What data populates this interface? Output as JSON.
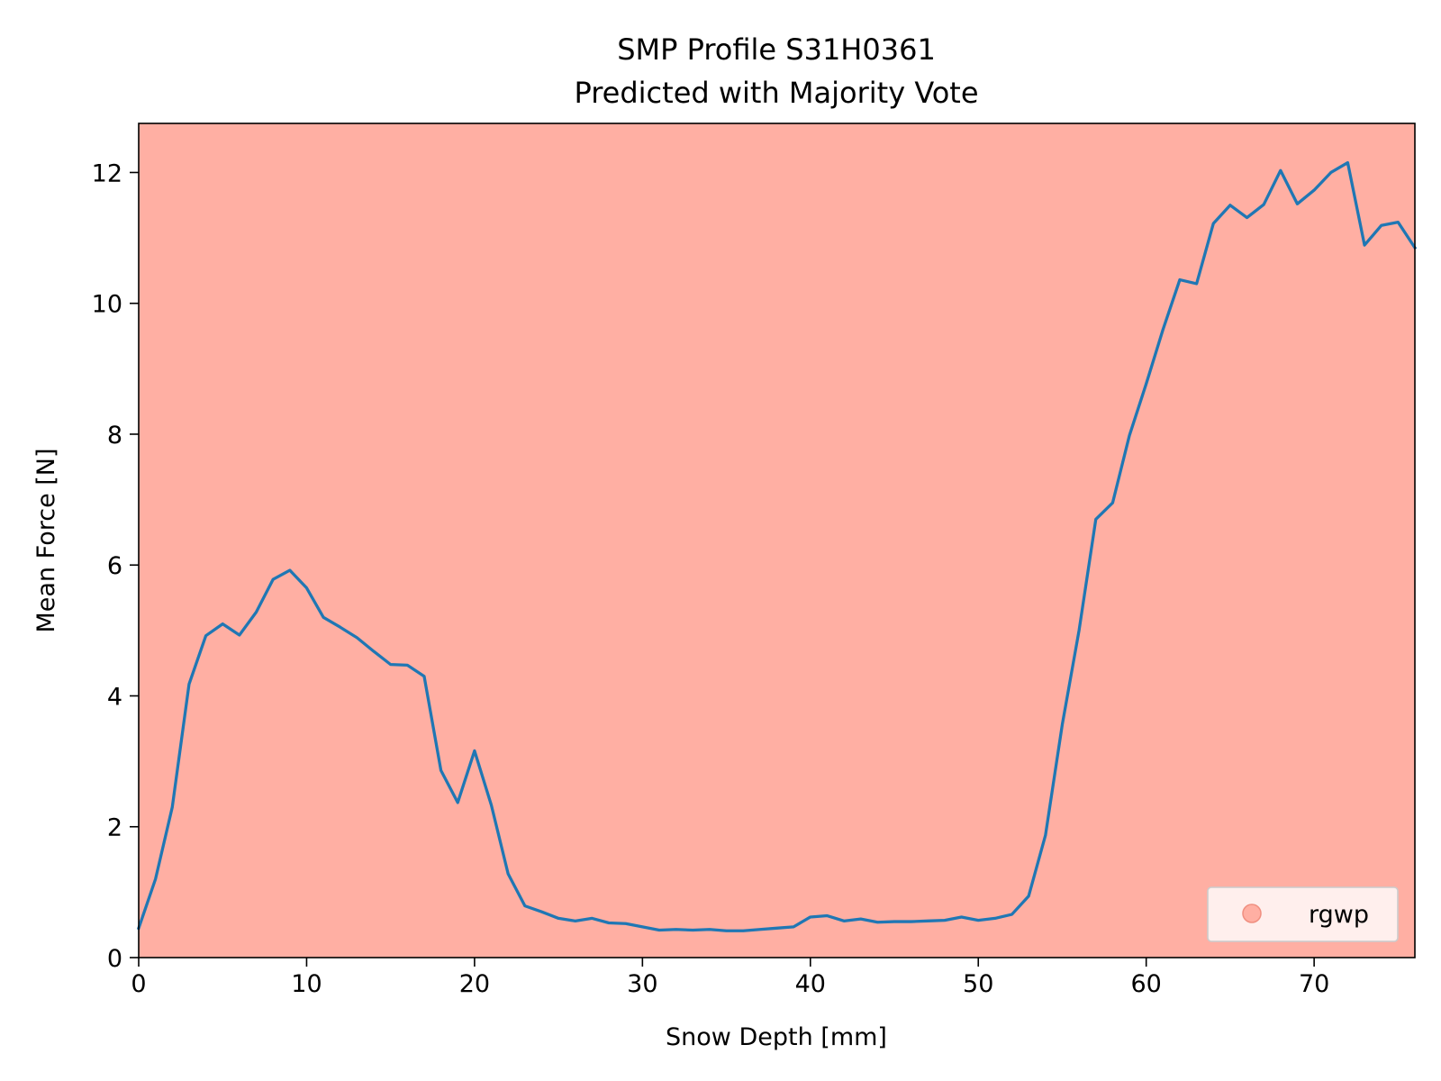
{
  "chart_data": {
    "type": "line",
    "title": "SMP Profile S31H0361",
    "subtitle": "Predicted with Majority Vote",
    "xlabel": "Snow Depth [mm]",
    "ylabel": "Mean Force [N]",
    "xlim": [
      0,
      76
    ],
    "ylim": [
      0,
      12.75
    ],
    "xticks": [
      0,
      10,
      20,
      30,
      40,
      50,
      60,
      70
    ],
    "yticks": [
      0,
      2,
      4,
      6,
      8,
      10,
      12
    ],
    "grid": false,
    "background_color": "#ffafa3",
    "line_color": "#1f77b4",
    "legend": {
      "placement": "lower-right",
      "entries": [
        {
          "label": "rgwp",
          "color": "#ffafa3",
          "marker": "circle"
        }
      ]
    },
    "series": [
      {
        "x": [
          0,
          1,
          2,
          3,
          4,
          5,
          6,
          7,
          8,
          9,
          10,
          11,
          12,
          13,
          14,
          15,
          16,
          17,
          18,
          19,
          20,
          21,
          22,
          23,
          24,
          25,
          26,
          27,
          28,
          29,
          30,
          31,
          32,
          33,
          34,
          35,
          36,
          37,
          38,
          39,
          40,
          41,
          42,
          43,
          44,
          45,
          46,
          47,
          48,
          49,
          50,
          51,
          52,
          53,
          54,
          55,
          56,
          57,
          58,
          59,
          60,
          61,
          62,
          63,
          64,
          65,
          66,
          67,
          68,
          69,
          70,
          71,
          72,
          73,
          74,
          75,
          76
        ],
        "y": [
          0.45,
          1.2,
          2.3,
          4.18,
          4.92,
          5.1,
          4.93,
          5.28,
          5.78,
          5.92,
          5.65,
          5.2,
          5.05,
          4.89,
          4.68,
          4.48,
          4.47,
          4.3,
          2.86,
          2.37,
          3.16,
          2.33,
          1.28,
          0.79,
          0.7,
          0.6,
          0.56,
          0.6,
          0.53,
          0.52,
          0.47,
          0.42,
          0.43,
          0.42,
          0.43,
          0.41,
          0.41,
          0.43,
          0.45,
          0.47,
          0.62,
          0.64,
          0.56,
          0.59,
          0.54,
          0.55,
          0.55,
          0.56,
          0.57,
          0.62,
          0.57,
          0.6,
          0.66,
          0.94,
          1.87,
          3.56,
          5.0,
          6.7,
          6.95,
          7.98,
          8.77,
          9.6,
          10.36,
          10.3,
          11.22,
          11.5,
          11.31,
          11.51,
          12.03,
          11.52,
          11.73,
          12.0,
          12.15,
          10.89,
          11.19,
          11.24,
          10.85
        ]
      }
    ]
  }
}
